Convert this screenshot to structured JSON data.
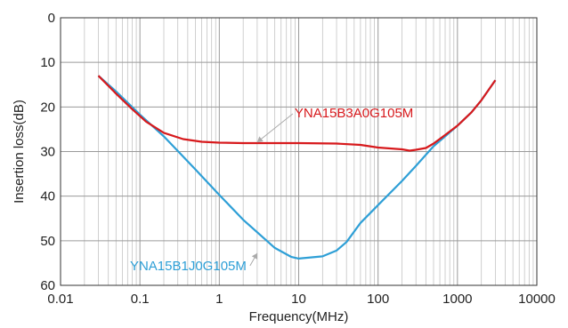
{
  "chart_data": {
    "type": "line",
    "xlabel": "Frequency(MHz)",
    "ylabel": "Insertion loss(dB)",
    "x_scale": "log",
    "xlim": [
      0.01,
      10000
    ],
    "ylim": [
      0,
      60
    ],
    "y_inverted": true,
    "grid": true,
    "x_ticks": [
      {
        "value": 0.01,
        "label": "0.01"
      },
      {
        "value": 0.1,
        "label": "0.1"
      },
      {
        "value": 1,
        "label": "1"
      },
      {
        "value": 10,
        "label": "10"
      },
      {
        "value": 100,
        "label": "100"
      },
      {
        "value": 1000,
        "label": "1000"
      },
      {
        "value": 10000,
        "label": "10000"
      }
    ],
    "y_ticks": [
      {
        "value": 0,
        "label": "0"
      },
      {
        "value": 10,
        "label": "10"
      },
      {
        "value": 20,
        "label": "20"
      },
      {
        "value": 30,
        "label": "30"
      },
      {
        "value": 40,
        "label": "40"
      },
      {
        "value": 50,
        "label": "50"
      },
      {
        "value": 60,
        "label": "60"
      }
    ],
    "series": [
      {
        "name": "YNA15B3A0G105M",
        "color": "#d7191c",
        "label_anchor": {
          "x": 3,
          "y": 27.9
        },
        "x": [
          0.03,
          0.05,
          0.08,
          0.12,
          0.2,
          0.35,
          0.6,
          1,
          2,
          5,
          10,
          30,
          60,
          100,
          200,
          250,
          300,
          400,
          500,
          700,
          1000,
          1500,
          2000,
          3000
        ],
        "y": [
          13,
          17,
          20.5,
          23.3,
          25.8,
          27.2,
          27.8,
          28,
          28.1,
          28.1,
          28.1,
          28.2,
          28.5,
          29.1,
          29.5,
          29.8,
          29.6,
          29.2,
          28.2,
          26.3,
          24.2,
          21.2,
          18.5,
          14
        ]
      },
      {
        "name": "YNA15B1J0G105M",
        "color": "#2e9fd6",
        "label_anchor": {
          "x": 3,
          "y": 52.8
        },
        "x": [
          0.03,
          0.05,
          0.1,
          0.2,
          0.5,
          1,
          2,
          5,
          8,
          10,
          20,
          30,
          40,
          60,
          100,
          200,
          300,
          500,
          700,
          1000,
          1500,
          2000,
          3000
        ],
        "y": [
          13,
          16.5,
          21.7,
          26.6,
          34,
          39.7,
          45.3,
          51.6,
          53.6,
          54,
          53.5,
          52.2,
          50.3,
          46,
          42,
          36.6,
          33.2,
          28.8,
          26.6,
          24.2,
          21.2,
          18.5,
          14
        ]
      }
    ]
  }
}
